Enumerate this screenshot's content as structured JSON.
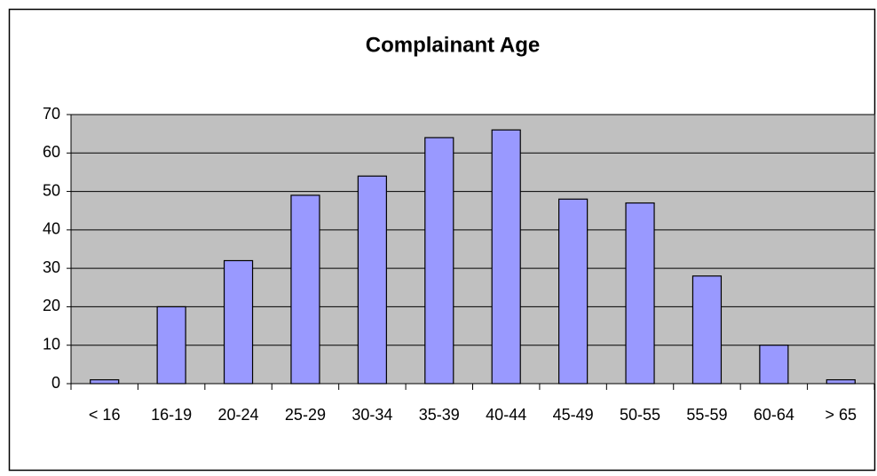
{
  "chart_data": {
    "type": "bar",
    "title": "Complainant Age",
    "categories": [
      "< 16",
      "16-19",
      "20-24",
      "25-29",
      "30-34",
      "35-39",
      "40-44",
      "45-49",
      "50-55",
      "55-59",
      "60-64",
      "> 65"
    ],
    "values": [
      1,
      20,
      32,
      49,
      54,
      64,
      66,
      48,
      47,
      28,
      10,
      1
    ],
    "color": "#9999ff",
    "plot_background": "#c0c0c0",
    "ylim": [
      0,
      70
    ],
    "yticks": [
      0,
      10,
      20,
      30,
      40,
      50,
      60,
      70
    ],
    "grid": true
  }
}
